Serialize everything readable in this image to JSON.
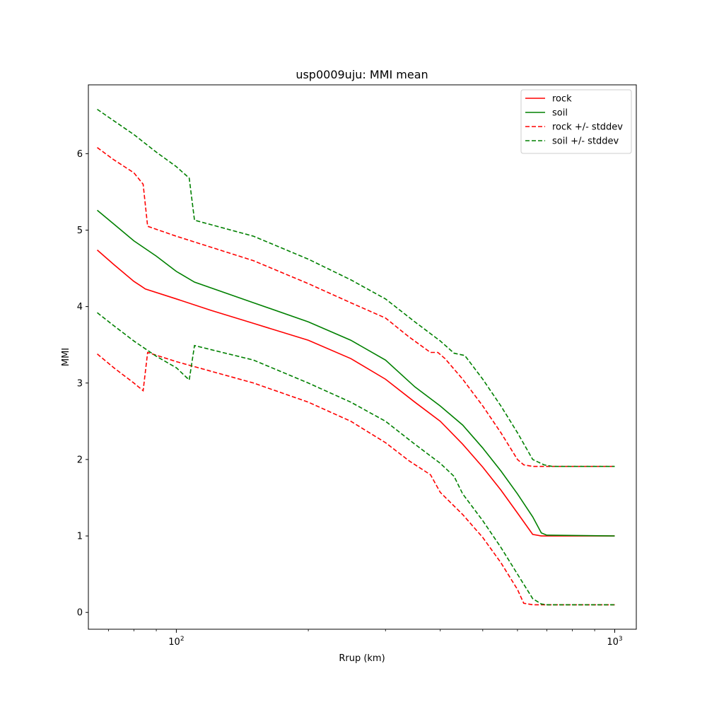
{
  "chart_data": {
    "type": "line",
    "title": "usp0009uju: MMI mean",
    "xlabel": "Rrup (km)",
    "ylabel": "MMI",
    "xscale": "log",
    "xlim": [
      63,
      1120
    ],
    "ylim": [
      -0.22,
      6.9
    ],
    "grid": false,
    "legend_position": "top-right",
    "x_ticks": [
      {
        "value": 100,
        "base": "10",
        "exp": "2"
      },
      {
        "value": 1000,
        "base": "10",
        "exp": "3"
      }
    ],
    "y_ticks": [
      "0",
      "1",
      "2",
      "3",
      "4",
      "5",
      "6"
    ],
    "series": [
      {
        "name": "rock",
        "color": "#ff0000",
        "dash": "solid",
        "points": [
          [
            66,
            4.74
          ],
          [
            72,
            4.55
          ],
          [
            80,
            4.33
          ],
          [
            83,
            4.27
          ],
          [
            85,
            4.23
          ],
          [
            100,
            4.1
          ],
          [
            120,
            3.95
          ],
          [
            150,
            3.78
          ],
          [
            200,
            3.56
          ],
          [
            250,
            3.32
          ],
          [
            300,
            3.05
          ],
          [
            350,
            2.75
          ],
          [
            400,
            2.5
          ],
          [
            450,
            2.2
          ],
          [
            500,
            1.9
          ],
          [
            550,
            1.6
          ],
          [
            600,
            1.3
          ],
          [
            650,
            1.02
          ],
          [
            680,
            1.0
          ],
          [
            1000,
            1.0
          ]
        ]
      },
      {
        "name": "soil",
        "color": "#008000",
        "dash": "solid",
        "points": [
          [
            66,
            5.26
          ],
          [
            72,
            5.08
          ],
          [
            80,
            4.86
          ],
          [
            90,
            4.66
          ],
          [
            100,
            4.46
          ],
          [
            110,
            4.32
          ],
          [
            150,
            4.05
          ],
          [
            200,
            3.8
          ],
          [
            250,
            3.56
          ],
          [
            300,
            3.3
          ],
          [
            350,
            2.95
          ],
          [
            400,
            2.7
          ],
          [
            450,
            2.45
          ],
          [
            500,
            2.15
          ],
          [
            550,
            1.85
          ],
          [
            600,
            1.55
          ],
          [
            650,
            1.25
          ],
          [
            680,
            1.04
          ],
          [
            700,
            1.01
          ],
          [
            1000,
            1.0
          ]
        ]
      },
      {
        "name": "rock +/- stddev",
        "color": "#ff0000",
        "dash": "dashed",
        "points": [
          [
            66,
            6.08
          ],
          [
            72,
            5.92
          ],
          [
            80,
            5.75
          ],
          [
            84,
            5.6
          ],
          [
            86,
            5.05
          ],
          [
            100,
            4.92
          ],
          [
            150,
            4.6
          ],
          [
            200,
            4.3
          ],
          [
            250,
            4.05
          ],
          [
            300,
            3.85
          ],
          [
            340,
            3.6
          ],
          [
            380,
            3.4
          ],
          [
            395,
            3.4
          ],
          [
            410,
            3.32
          ],
          [
            450,
            3.05
          ],
          [
            500,
            2.7
          ],
          [
            550,
            2.35
          ],
          [
            600,
            2.0
          ],
          [
            620,
            1.93
          ],
          [
            650,
            1.91
          ],
          [
            1000,
            1.91
          ]
        ]
      },
      {
        "name": "",
        "color": "#ff0000",
        "dash": "dashed",
        "points": [
          [
            66,
            3.38
          ],
          [
            72,
            3.2
          ],
          [
            80,
            3.0
          ],
          [
            84,
            2.9
          ],
          [
            86,
            3.4
          ],
          [
            100,
            3.28
          ],
          [
            150,
            3.0
          ],
          [
            200,
            2.75
          ],
          [
            250,
            2.5
          ],
          [
            300,
            2.22
          ],
          [
            340,
            1.98
          ],
          [
            380,
            1.8
          ],
          [
            400,
            1.57
          ],
          [
            450,
            1.28
          ],
          [
            500,
            0.98
          ],
          [
            550,
            0.65
          ],
          [
            600,
            0.3
          ],
          [
            620,
            0.12
          ],
          [
            650,
            0.1
          ],
          [
            1000,
            0.1
          ]
        ]
      },
      {
        "name": "soil +/- stddev",
        "color": "#008000",
        "dash": "dashed",
        "points": [
          [
            66,
            6.58
          ],
          [
            72,
            6.43
          ],
          [
            80,
            6.25
          ],
          [
            90,
            6.02
          ],
          [
            100,
            5.83
          ],
          [
            107,
            5.68
          ],
          [
            110,
            5.13
          ],
          [
            150,
            4.92
          ],
          [
            200,
            4.62
          ],
          [
            250,
            4.35
          ],
          [
            300,
            4.1
          ],
          [
            350,
            3.8
          ],
          [
            400,
            3.55
          ],
          [
            430,
            3.39
          ],
          [
            455,
            3.36
          ],
          [
            500,
            3.05
          ],
          [
            550,
            2.7
          ],
          [
            600,
            2.35
          ],
          [
            650,
            2.0
          ],
          [
            690,
            1.93
          ],
          [
            720,
            1.91
          ],
          [
            1000,
            1.91
          ]
        ]
      },
      {
        "name": "",
        "color": "#008000",
        "dash": "dashed",
        "points": [
          [
            66,
            3.92
          ],
          [
            72,
            3.75
          ],
          [
            80,
            3.55
          ],
          [
            90,
            3.35
          ],
          [
            100,
            3.2
          ],
          [
            107,
            3.04
          ],
          [
            110,
            3.49
          ],
          [
            150,
            3.3
          ],
          [
            200,
            3.0
          ],
          [
            250,
            2.75
          ],
          [
            300,
            2.5
          ],
          [
            350,
            2.2
          ],
          [
            400,
            1.95
          ],
          [
            430,
            1.78
          ],
          [
            450,
            1.55
          ],
          [
            500,
            1.2
          ],
          [
            550,
            0.85
          ],
          [
            600,
            0.5
          ],
          [
            650,
            0.18
          ],
          [
            680,
            0.11
          ],
          [
            700,
            0.1
          ],
          [
            1000,
            0.1
          ]
        ]
      }
    ]
  }
}
